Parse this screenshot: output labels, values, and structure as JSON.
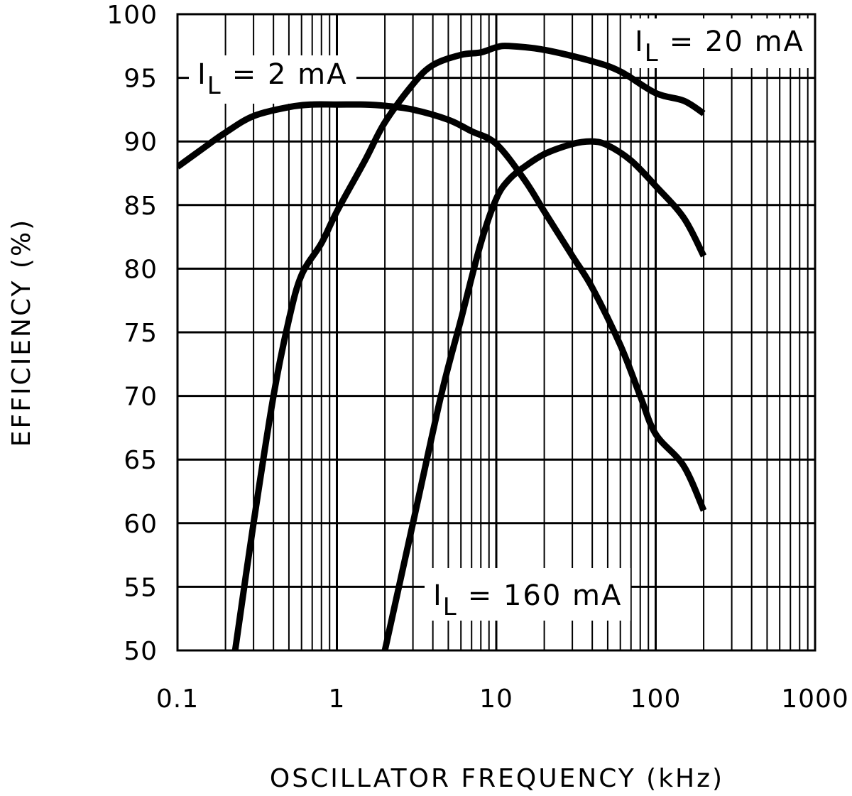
{
  "chart_data": {
    "type": "line",
    "title": "",
    "xlabel": "OSCILLATOR FREQUENCY (kHz)",
    "ylabel": "EFFICIENCY (%)",
    "xscale": "log",
    "xlim": [
      0.1,
      1000
    ],
    "ylim": [
      50,
      100
    ],
    "grid": true,
    "x_ticks": [
      "0.1",
      "1",
      "10",
      "100",
      "1000"
    ],
    "y_ticks": [
      "50",
      "55",
      "60",
      "65",
      "70",
      "75",
      "80",
      "85",
      "90",
      "95",
      "100"
    ],
    "series": [
      {
        "name": "I_L = 2 mA",
        "label_main": "I",
        "label_sub": "L",
        "label_rest": "= 2 mA",
        "points": [
          [
            0.1,
            88.0
          ],
          [
            0.15,
            89.6
          ],
          [
            0.2,
            90.7
          ],
          [
            0.3,
            92.0
          ],
          [
            0.5,
            92.7
          ],
          [
            0.7,
            92.9
          ],
          [
            1.0,
            92.9
          ],
          [
            1.5,
            92.9
          ],
          [
            2.0,
            92.8
          ],
          [
            3.0,
            92.5
          ],
          [
            5.0,
            91.7
          ],
          [
            7.0,
            90.8
          ],
          [
            10.0,
            89.8
          ],
          [
            15.0,
            87.0
          ],
          [
            20.0,
            84.5
          ],
          [
            30.0,
            81.0
          ],
          [
            40.0,
            78.5
          ],
          [
            60.0,
            74.0
          ],
          [
            80.0,
            70.0
          ],
          [
            100.0,
            67.0
          ],
          [
            150.0,
            64.5
          ],
          [
            200.0,
            61.0
          ]
        ]
      },
      {
        "name": "I_L = 20 mA",
        "label_main": "I",
        "label_sub": "L",
        "label_rest": "= 20 mA",
        "points": [
          [
            0.23,
            50.0
          ],
          [
            0.3,
            60.0
          ],
          [
            0.4,
            70.0
          ],
          [
            0.5,
            76.0
          ],
          [
            0.6,
            79.5
          ],
          [
            0.8,
            82.0
          ],
          [
            1.0,
            84.5
          ],
          [
            1.5,
            88.5
          ],
          [
            2.0,
            91.5
          ],
          [
            3.0,
            94.5
          ],
          [
            4.0,
            96.0
          ],
          [
            6.0,
            96.8
          ],
          [
            8.0,
            97.0
          ],
          [
            10.0,
            97.4
          ],
          [
            12.0,
            97.5
          ],
          [
            20.0,
            97.2
          ],
          [
            40.0,
            96.3
          ],
          [
            60.0,
            95.5
          ],
          [
            100.0,
            93.8
          ],
          [
            150.0,
            93.2
          ],
          [
            200.0,
            92.2
          ]
        ]
      },
      {
        "name": "I_L = 160 mA",
        "label_main": "I",
        "label_sub": "L",
        "label_rest": "= 160 mA",
        "points": [
          [
            2.0,
            50.0
          ],
          [
            3.0,
            60.0
          ],
          [
            4.5,
            70.0
          ],
          [
            6.0,
            76.0
          ],
          [
            8.0,
            82.0
          ],
          [
            10.0,
            85.5
          ],
          [
            12.0,
            87.0
          ],
          [
            15.0,
            88.0
          ],
          [
            20.0,
            89.0
          ],
          [
            30.0,
            89.8
          ],
          [
            40.0,
            90.0
          ],
          [
            50.0,
            89.7
          ],
          [
            70.0,
            88.5
          ],
          [
            100.0,
            86.5
          ],
          [
            150.0,
            84.0
          ],
          [
            200.0,
            81.0
          ]
        ]
      }
    ]
  }
}
